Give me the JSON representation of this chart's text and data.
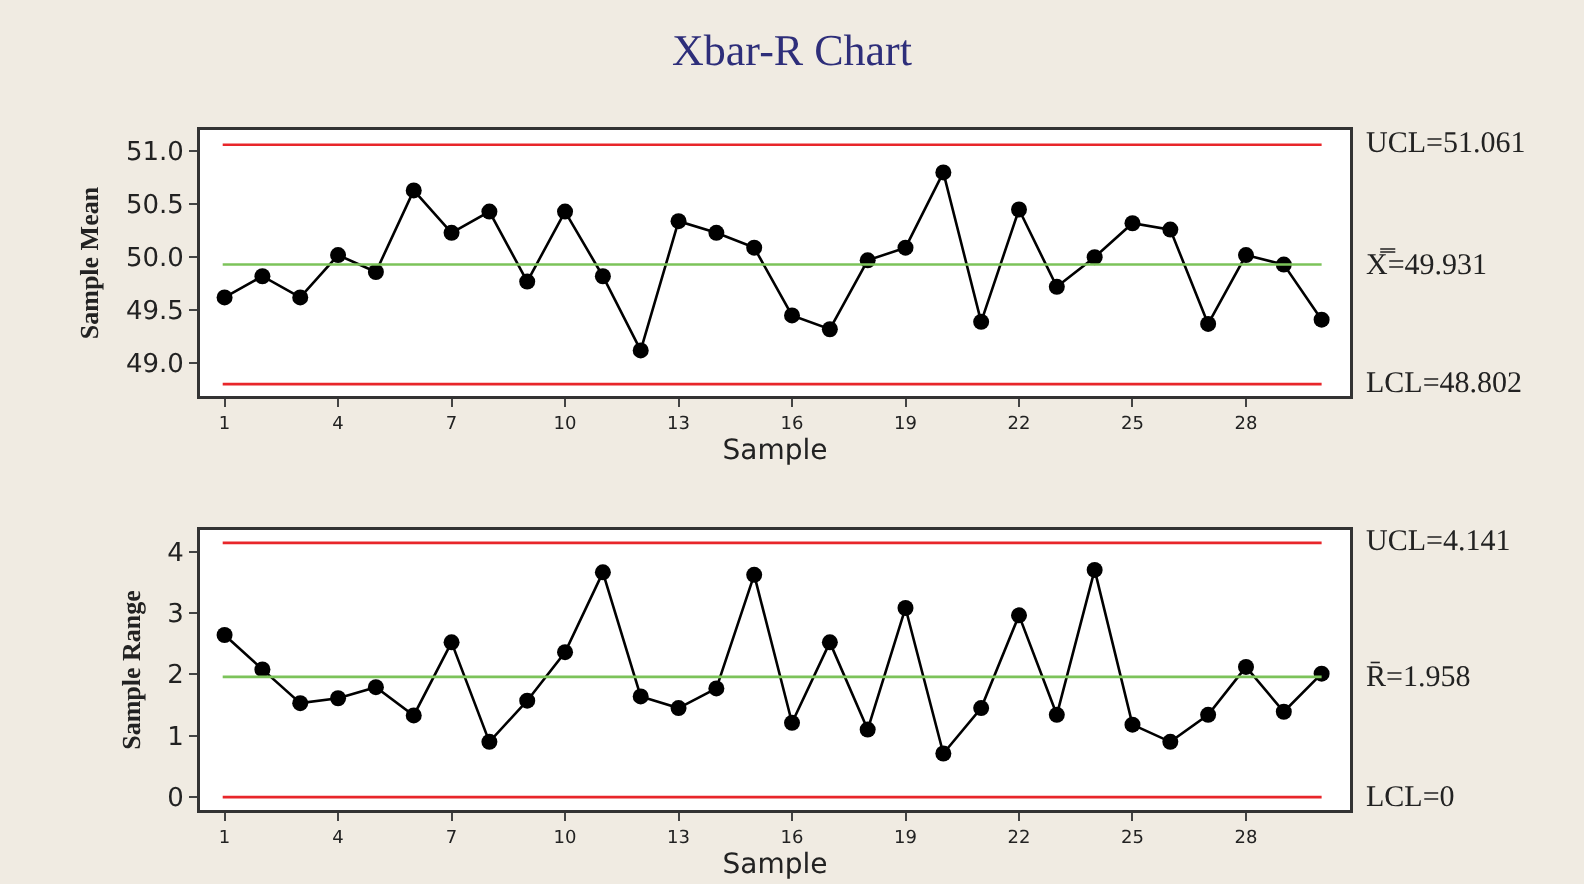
{
  "chart_data": [
    {
      "type": "line",
      "title": "Xbar-R Chart",
      "xlabel": "Sample",
      "ylabel": "Sample Mean",
      "marker": "circle",
      "line_style": "solid",
      "grid": false,
      "x": [
        1,
        2,
        3,
        4,
        5,
        6,
        7,
        8,
        9,
        10,
        11,
        12,
        13,
        14,
        15,
        16,
        17,
        18,
        19,
        20,
        21,
        22,
        23,
        24,
        25,
        26,
        27,
        28,
        29,
        30
      ],
      "series": [
        {
          "color": "#000000",
          "values": [
            49.62,
            49.82,
            49.62,
            50.02,
            49.86,
            50.63,
            50.23,
            50.43,
            49.77,
            50.43,
            49.82,
            49.12,
            50.34,
            50.23,
            50.09,
            49.45,
            49.32,
            49.97,
            50.09,
            50.8,
            49.39,
            50.45,
            49.72,
            50.0,
            50.32,
            50.26,
            49.37,
            50.02,
            49.93,
            49.41
          ]
        }
      ],
      "xlim": [
        0.35,
        30.75
      ],
      "xticks": [
        1,
        4,
        7,
        10,
        13,
        16,
        19,
        22,
        25,
        28
      ],
      "ylim": [
        48.69,
        51.2
      ],
      "yticks": [
        {
          "value": 49,
          "label": "49.0"
        },
        {
          "value": 49.5,
          "label": "49.5"
        },
        {
          "value": 50,
          "label": "50.0"
        },
        {
          "value": 50.5,
          "label": "50.5"
        },
        {
          "value": 51,
          "label": "51.0"
        }
      ],
      "ref_lines": [
        {
          "axis": "y",
          "value": 51.061,
          "label": "UCL=51.061",
          "color": "#e8262a"
        },
        {
          "axis": "y",
          "value": 49.931,
          "label": "X̿=49.931",
          "color": "#7cc35a"
        },
        {
          "axis": "y",
          "value": 48.802,
          "label": "LCL=48.802",
          "color": "#e8262a"
        }
      ]
    },
    {
      "type": "line",
      "xlabel": "Sample",
      "ylabel": "Sample Range",
      "marker": "circle",
      "line_style": "solid",
      "grid": false,
      "x": [
        1,
        2,
        3,
        4,
        5,
        6,
        7,
        8,
        9,
        10,
        11,
        12,
        13,
        14,
        15,
        16,
        17,
        18,
        19,
        20,
        21,
        22,
        23,
        24,
        25,
        26,
        27,
        28,
        29,
        30
      ],
      "series": [
        {
          "color": "#000000",
          "values": [
            2.64,
            2.08,
            1.53,
            1.61,
            1.79,
            1.33,
            2.52,
            0.9,
            1.57,
            2.36,
            3.66,
            1.64,
            1.45,
            1.77,
            3.62,
            1.21,
            2.52,
            1.1,
            3.08,
            0.71,
            1.45,
            2.96,
            1.34,
            3.7,
            1.18,
            0.9,
            1.34,
            2.12,
            1.39,
            2.01
          ]
        }
      ],
      "xlim": [
        0.35,
        30.75
      ],
      "xticks": [
        1,
        4,
        7,
        10,
        13,
        16,
        19,
        22,
        25,
        28
      ],
      "ylim": [
        -0.21,
        4.35
      ],
      "yticks": [
        0,
        1,
        2,
        3,
        4
      ],
      "ref_lines": [
        {
          "axis": "y",
          "value": 4.141,
          "label": "UCL=4.141",
          "color": "#e8262a"
        },
        {
          "axis": "y",
          "value": 1.958,
          "label": "R̄=1.958",
          "color": "#7cc35a"
        },
        {
          "axis": "y",
          "value": 0,
          "label": "LCL=0",
          "color": "#e8262a"
        }
      ]
    }
  ]
}
